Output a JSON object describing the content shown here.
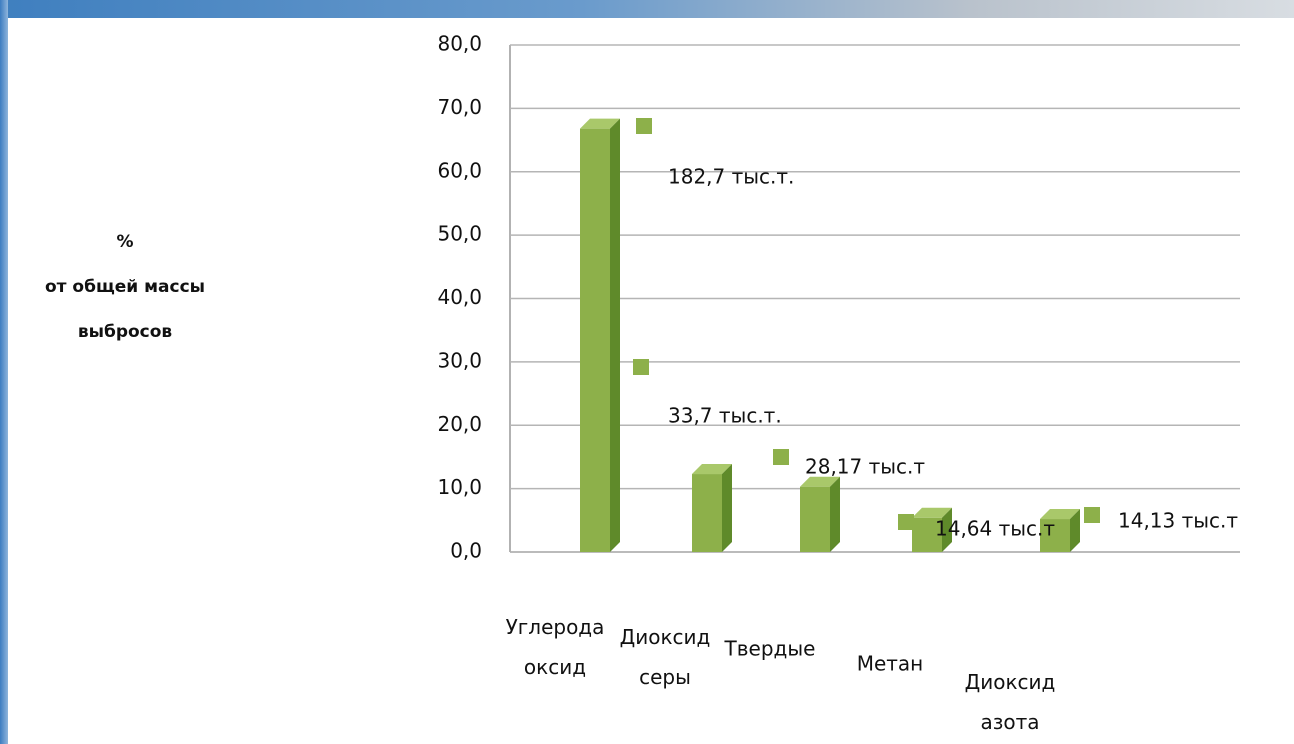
{
  "chart_data": {
    "type": "bar",
    "ylabel": [
      "%",
      "от общей массы",
      "выбросов"
    ],
    "categories": [
      "Углерода оксид",
      "Диоксид серы",
      "Твердые",
      "Метан",
      "Диоксид азота"
    ],
    "values": [
      66.8,
      12.3,
      10.3,
      5.4,
      5.2
    ],
    "color": "#8db04a",
    "annotations": [
      "182,7 тыс.т.",
      "33,7 тыс.т.",
      "28,17 тыс.т",
      "14,64 тыс.т",
      "14,13 тыс.т"
    ],
    "ylim": [
      0,
      80
    ],
    "yticks": [
      {
        "value": 0,
        "label": "0,0"
      },
      {
        "value": 10,
        "label": "10,0"
      },
      {
        "value": 20,
        "label": "20,0"
      },
      {
        "value": 30,
        "label": "30,0"
      },
      {
        "value": 40,
        "label": "40,0"
      },
      {
        "value": 50,
        "label": "50,0"
      },
      {
        "value": 60,
        "label": "60,0"
      },
      {
        "value": 70,
        "label": "70,0"
      },
      {
        "value": 80,
        "label": "80,0"
      }
    ],
    "grid": true
  }
}
